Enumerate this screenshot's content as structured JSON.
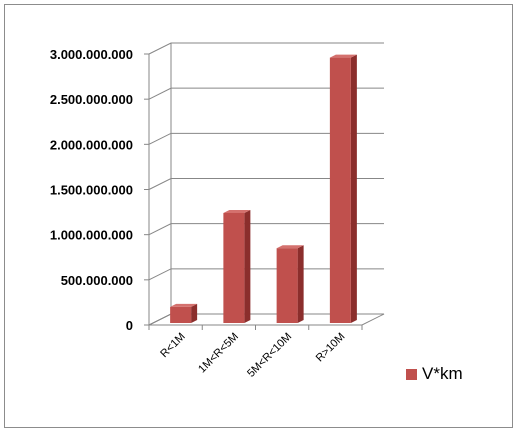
{
  "chart_data": {
    "type": "bar",
    "style": "3d-column",
    "categories": [
      "R<1M",
      "1M<R<5M",
      "5M<R<10M",
      "R>10M"
    ],
    "series": [
      {
        "name": "V*km",
        "values": [
          200000000,
          1240000000,
          850000000,
          2960000000
        ]
      }
    ],
    "yticks": [
      "0",
      "500.000.000",
      "1.000.000.000",
      "1.500.000.000",
      "2.000.000.000",
      "2.500.000.000",
      "3.000.000.000"
    ],
    "ylim": [
      0,
      3000000000
    ],
    "grid": true,
    "legend_position": "right",
    "colors": {
      "bar_front": "#C0504D",
      "bar_side": "#8B2E2C",
      "bar_top": "#D4716E",
      "grid": "#878787",
      "frame": "#8c8c8c"
    }
  }
}
